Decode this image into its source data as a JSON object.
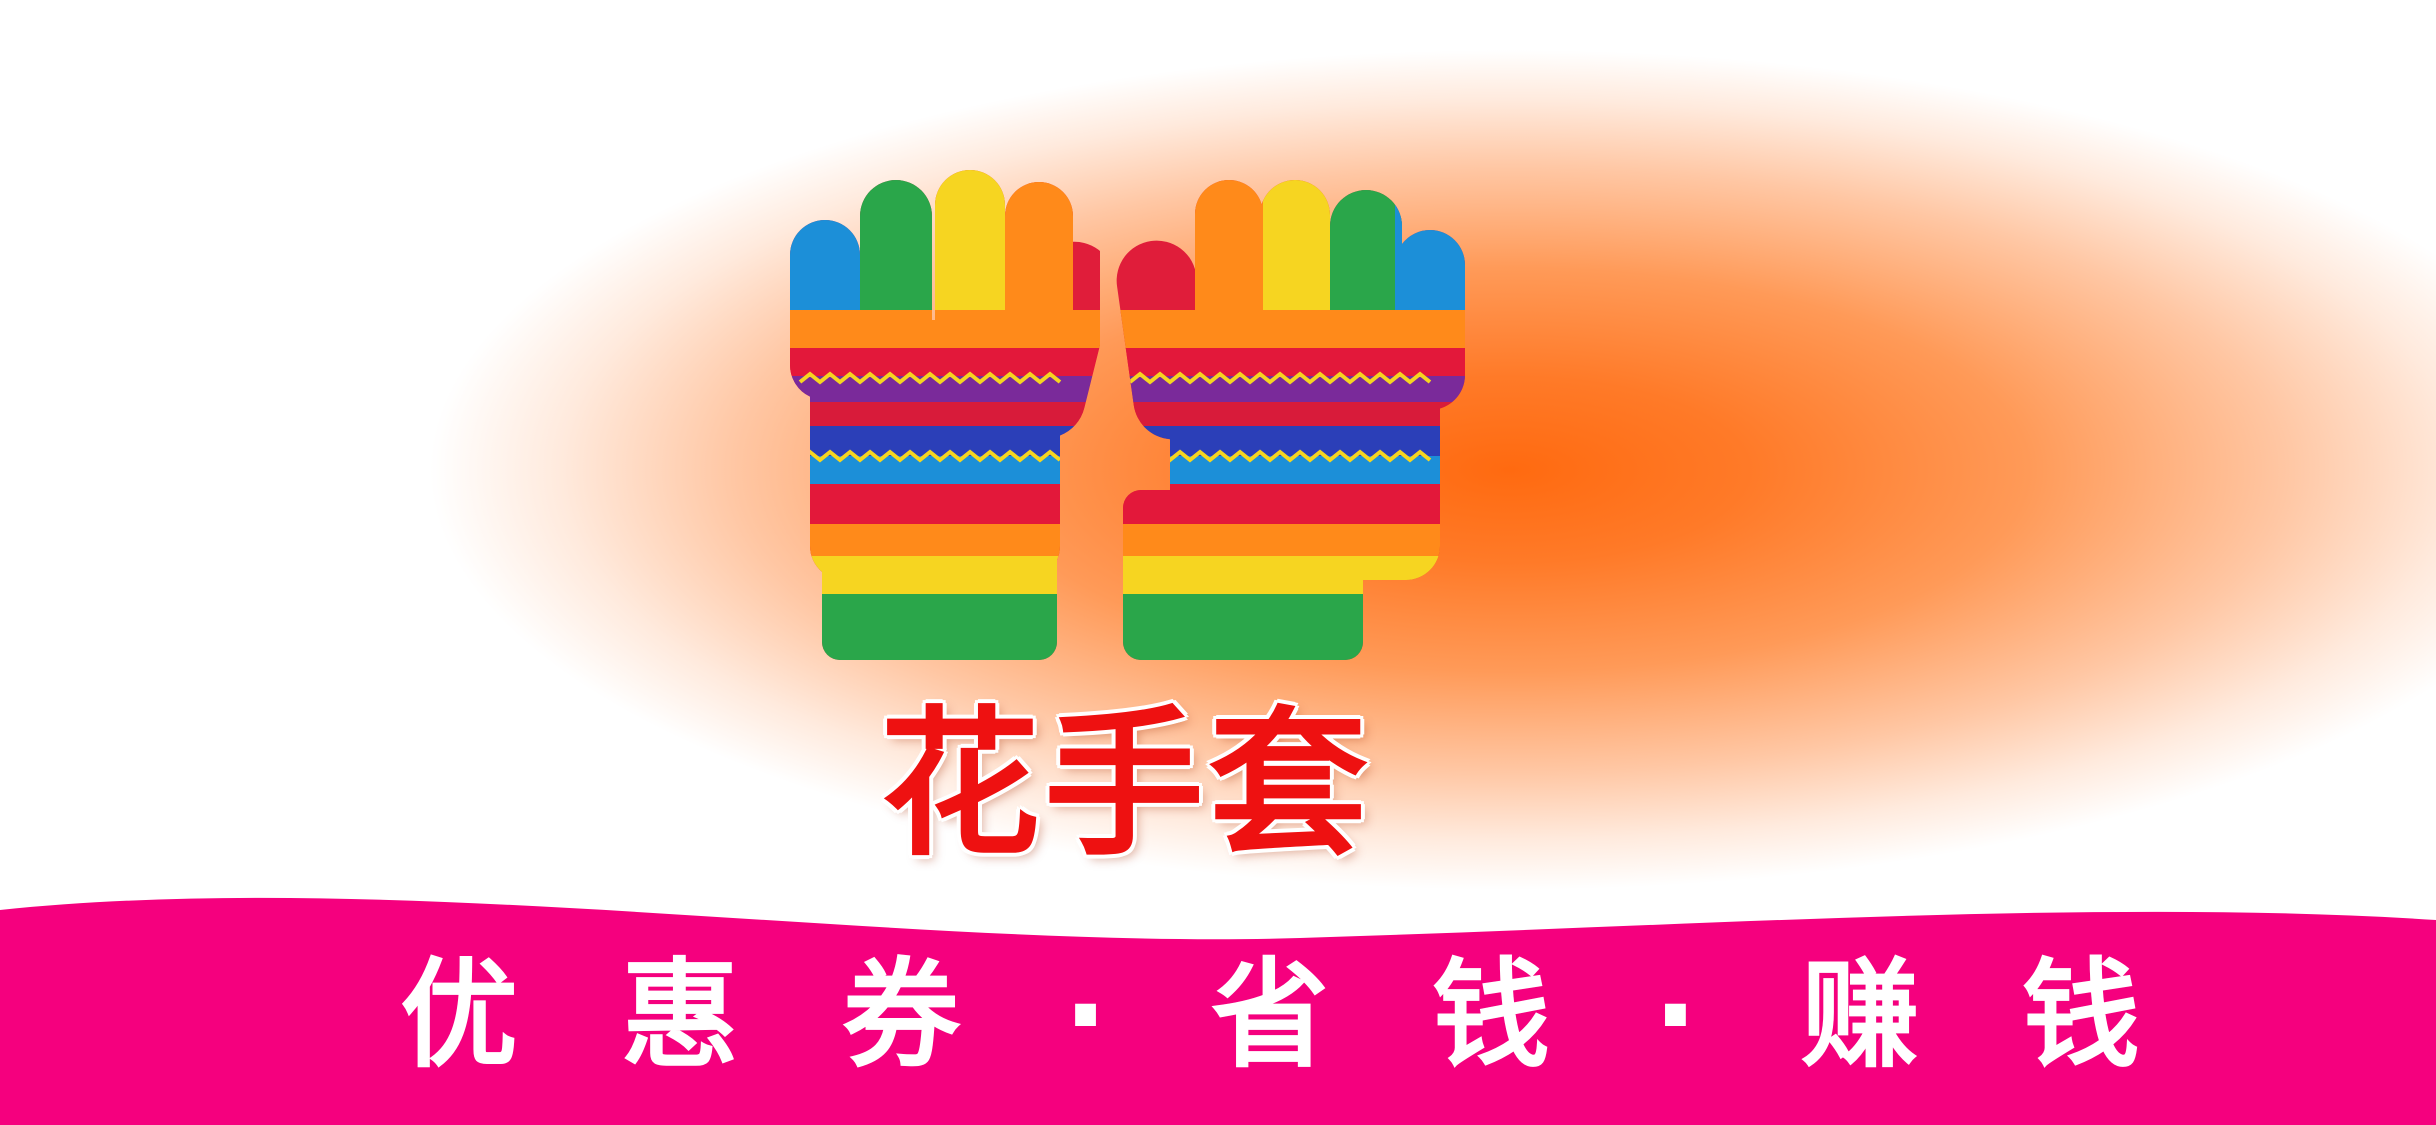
{
  "banner": {
    "title": "花手套",
    "slogan": {
      "chars": [
        "优",
        "惠",
        "券",
        "·",
        "省",
        "钱",
        "·",
        "赚",
        "钱"
      ]
    }
  },
  "colors": {
    "background_center": "#ff6a10",
    "background_edge": "#ffffff",
    "title_text": "#ee1111",
    "band": "#f5007e",
    "slogan_text": "#ffffff"
  },
  "icons": {
    "product_image": "knitted-rainbow-gloves-icon"
  }
}
